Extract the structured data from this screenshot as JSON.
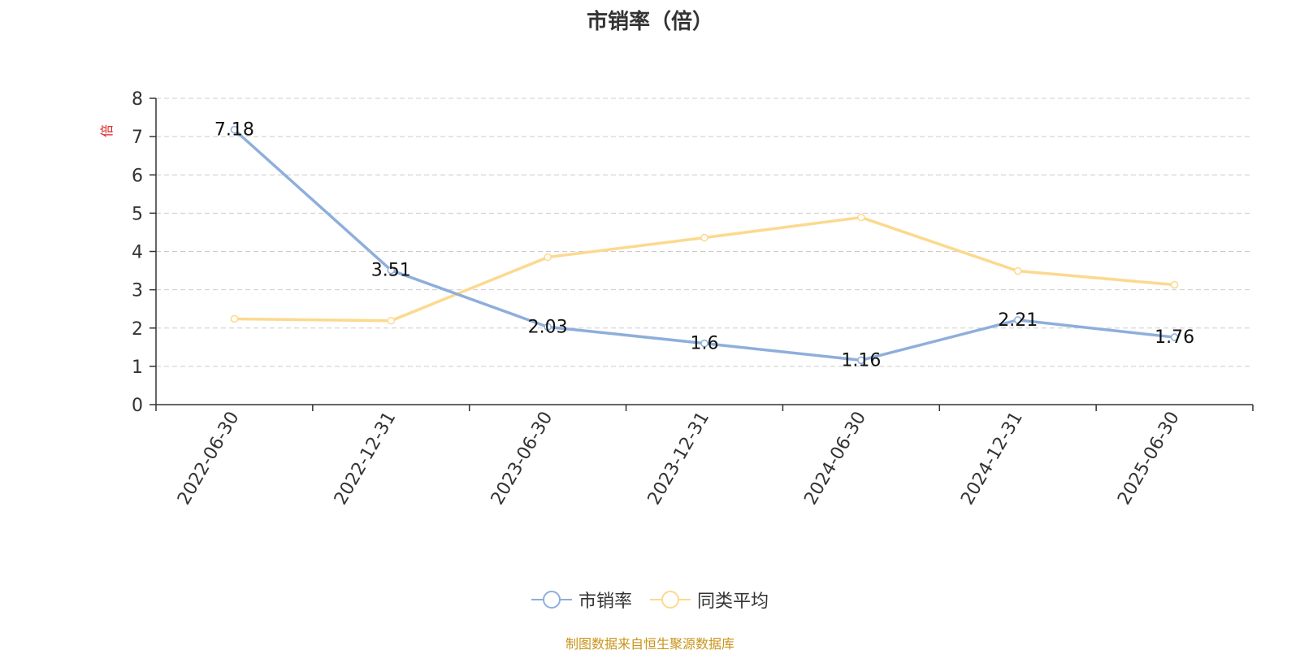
{
  "title": "市销率（倍）",
  "source_note": "制图数据来自恒生聚源数据库",
  "chart_data": {
    "type": "line",
    "title": "市销率（倍）",
    "ylabel": "倍",
    "xlabel": "",
    "ylim": [
      0,
      8
    ],
    "yticks": [
      0,
      1,
      2,
      3,
      4,
      5,
      6,
      7,
      8
    ],
    "grid": true,
    "legend_position": "bottom",
    "categories": [
      "2022-06-30",
      "2022-12-31",
      "2023-06-30",
      "2023-12-31",
      "2024-06-30",
      "2024-12-31",
      "2025-06-30"
    ],
    "series": [
      {
        "name": "市销率",
        "color": "#8eaedb",
        "values": [
          7.18,
          3.51,
          2.03,
          1.6,
          1.16,
          2.21,
          1.76
        ],
        "labels": [
          "7.18",
          "3.51",
          "2.03",
          "1.6",
          "1.16",
          "2.21",
          "1.76"
        ],
        "show_labels": true
      },
      {
        "name": "同类平均",
        "color": "#fcd98f",
        "values": [
          2.24,
          2.19,
          3.85,
          4.36,
          4.89,
          3.49,
          3.13
        ],
        "show_labels": false
      }
    ]
  },
  "colors": {
    "axis": "#333333",
    "grid": "#cccccc",
    "ylabel": "#e02020",
    "source": "#c8941b"
  },
  "legend": {
    "items": [
      {
        "label": "市销率",
        "color": "#8eaedb"
      },
      {
        "label": "同类平均",
        "color": "#fcd98f"
      }
    ]
  }
}
